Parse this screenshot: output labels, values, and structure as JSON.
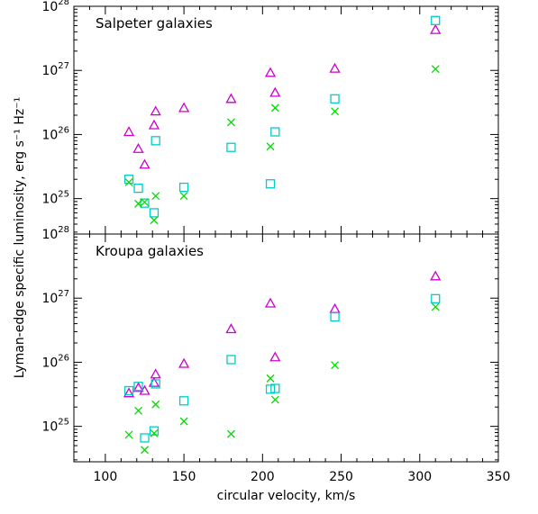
{
  "chart_data": [
    {
      "type": "scatter",
      "title": "Salpeter galaxies",
      "xlabel": "",
      "ylabel": "",
      "xlim": [
        80,
        350
      ],
      "ylim": [
        2.8e+24,
        1e+28
      ],
      "yscale": "log",
      "grid": false,
      "x_ticks": [
        100,
        150,
        200,
        250,
        300,
        350
      ],
      "y_ticks": [
        "10^25",
        "10^26",
        "10^27",
        "10^28"
      ],
      "y_ticks_values": [
        1e+25,
        1e+26,
        1e+27,
        1e+28
      ],
      "markers": {
        "triangle": "#cc00cc",
        "square": "#00cccc",
        "cross": "#00dd00"
      },
      "series": [
        {
          "marker": "triangle",
          "color": "#cc00cc",
          "x": [
            115,
            121,
            125,
            131,
            132,
            150,
            180,
            205,
            208,
            246,
            310
          ],
          "y": [
            1.1e+26,
            6e+25,
            3.4e+25,
            1.4e+26,
            2.3e+26,
            2.6e+26,
            3.6e+26,
            9.2e+26,
            4.5e+26,
            1.07e+27,
            4.3e+27
          ]
        },
        {
          "marker": "square",
          "color": "#00cccc",
          "x": [
            115,
            121,
            125,
            131,
            132,
            150,
            180,
            205,
            208,
            246,
            310
          ],
          "y": [
            2e+25,
            1.45e+25,
            8.5e+24,
            6e+24,
            8e+25,
            1.5e+25,
            6.3e+25,
            1.7e+25,
            1.1e+26,
            3.6e+26,
            6e+27
          ]
        },
        {
          "marker": "cross",
          "color": "#00dd00",
          "x": [
            115,
            121,
            125,
            131,
            132,
            150,
            180,
            205,
            208,
            246,
            310
          ],
          "y": [
            1.8e+25,
            8.3e+24,
            8.8e+24,
            4.6e+24,
            1.1e+25,
            1.1e+25,
            1.55e+26,
            6.5e+25,
            2.6e+26,
            2.3e+26,
            1.05e+27
          ]
        }
      ]
    },
    {
      "type": "scatter",
      "title": "Kroupa galaxies",
      "xlabel": "circular velocity, km/s",
      "ylabel": "Lyman-edge specific luminosity, erg s⁻¹ Hz⁻¹",
      "xlim": [
        80,
        350
      ],
      "ylim": [
        2.8e+24,
        1e+28
      ],
      "yscale": "log",
      "grid": false,
      "x_ticks": [
        100,
        150,
        200,
        250,
        300,
        350
      ],
      "y_ticks": [
        "10^25",
        "10^26",
        "10^27",
        "10^28"
      ],
      "y_ticks_values": [
        1e+25,
        1e+26,
        1e+27,
        1e+28
      ],
      "series": [
        {
          "marker": "triangle",
          "color": "#cc00cc",
          "x": [
            115,
            121,
            125,
            131,
            132,
            150,
            180,
            205,
            208,
            246,
            310
          ],
          "y": [
            3.3e+25,
            4e+25,
            3.6e+25,
            4.8e+25,
            6.5e+25,
            9.5e+25,
            3.3e+26,
            8.3e+26,
            1.2e+26,
            6.8e+26,
            2.2e+27
          ]
        },
        {
          "marker": "square",
          "color": "#00cccc",
          "x": [
            115,
            121,
            125,
            131,
            132,
            150,
            180,
            205,
            208,
            246,
            310
          ],
          "y": [
            3.6e+25,
            4.2e+25,
            6.6e+24,
            8.5e+24,
            4.6e+25,
            2.5e+25,
            1.1e+26,
            3.8e+25,
            3.9e+25,
            5.1e+26,
            9.8e+26
          ]
        },
        {
          "marker": "cross",
          "color": "#00dd00",
          "x": [
            115,
            121,
            125,
            131,
            132,
            150,
            180,
            205,
            208,
            246,
            310
          ],
          "y": [
            7.4e+24,
            1.75e+25,
            4.3e+24,
            7.8e+24,
            2.2e+25,
            1.2e+25,
            7.6e+24,
            5.6e+25,
            2.6e+25,
            9e+25,
            7.3e+26
          ]
        }
      ]
    }
  ]
}
